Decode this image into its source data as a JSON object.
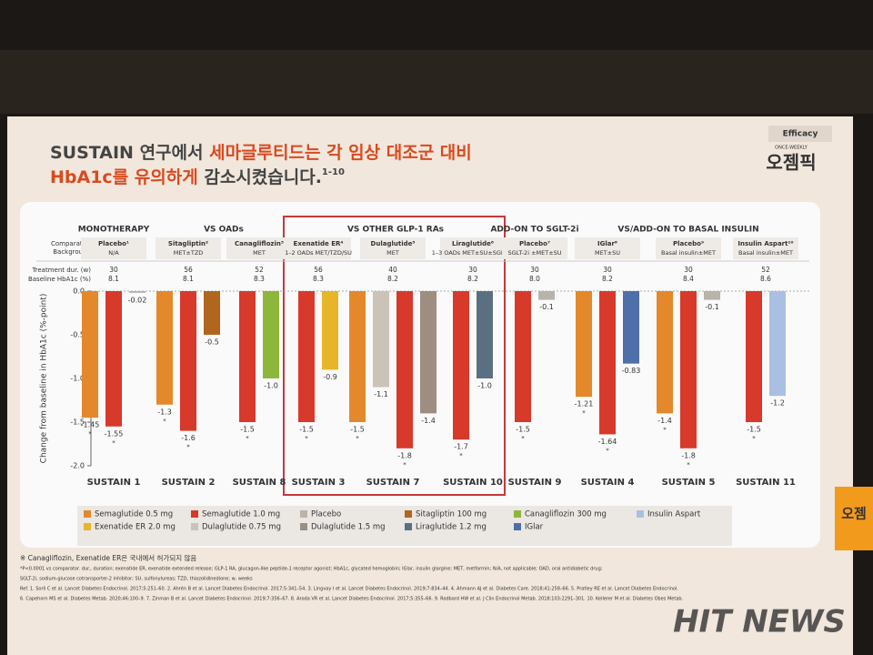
{
  "slide": {
    "tag": "Efficacy",
    "brand": "오젬픽",
    "brand_sub": "ONCE-WEEKLY",
    "title_line1_a": "SUSTAIN 연구에서 ",
    "title_line1_b": "세마글루티드는 각 임상 대조군 대비",
    "title_line2_a": "HbA1c를 유의하게",
    "title_line2_b": " 감소시켰습니다.",
    "title_sup": "1-10",
    "watermark": "HIT NEWS",
    "side_label": "오젬"
  },
  "chart_data": {
    "type": "grouped-bar",
    "y_label": "Change from baseline in HbA1c (%-point)",
    "ylim": [
      -2.0,
      0.0
    ],
    "yticks": [
      {
        "value": 0,
        "label": "0.0"
      },
      -0.5,
      {
        "value": -1,
        "label": "-1.0"
      },
      -1.5,
      {
        "value": -2,
        "label": "-2.0"
      }
    ],
    "groups": [
      "MONOTHERAPY",
      "VS OADs",
      "VS OTHER GLP-1 RAs",
      "ADD-ON TO SGLT-2i",
      "VS/ADD-ON TO BASAL INSULIN"
    ],
    "row_labels": [
      "Comparator:",
      "Background",
      "Treatment dur. (w)",
      "Baseline HbA1c (%)"
    ],
    "categories": [
      "SUSTAIN 1",
      "SUSTAIN 2",
      "SUSTAIN 8",
      "SUSTAIN 3",
      "SUSTAIN 7",
      "SUSTAIN 10",
      "SUSTAIN 9",
      "SUSTAIN 4",
      "SUSTAIN 5",
      "SUSTAIN 11"
    ],
    "comparators": [
      "Placebo¹",
      "Sitagliptin²",
      "Canagliflozin³",
      "Exenatide ER⁴",
      "Dulaglutide⁵",
      "Liraglutide⁶",
      "Placebo⁷",
      "IGlar⁸",
      "Placebo⁹",
      "Insulin Aspart¹⁰"
    ],
    "backgrounds": [
      "N/A",
      "MET±TZD",
      "MET",
      "1–2 OADs MET/TZD/SU",
      "MET",
      "1–3 OADs MET±SU±SGLT-2i",
      "SGLT-2i ±MET±SU",
      "MET±SU",
      "Basal insulin±MET",
      "Basal insulin±MET"
    ],
    "durations": [
      30,
      56,
      52,
      56,
      40,
      30,
      30,
      30,
      30,
      52
    ],
    "baselines": [
      "8.1",
      "8.1",
      "8.3",
      "8.3",
      "8.2",
      "8.2",
      "8.0",
      "8.2",
      "8.4",
      "8.6"
    ],
    "significance_marker": "*",
    "series": [
      {
        "name": "Semaglutide 0.5 mg",
        "color": "#e3892b",
        "values": [
          -1.45,
          -1.3,
          null,
          null,
          -1.5,
          null,
          null,
          -1.21,
          -1.4,
          null
        ]
      },
      {
        "name": "Dulaglutide 0.75 mg",
        "color": "#cbc3b8",
        "values": [
          null,
          null,
          null,
          null,
          -1.1,
          null,
          null,
          null,
          null,
          null
        ]
      },
      {
        "name": "Semaglutide 1.0 mg",
        "color": "#d7392b",
        "values": [
          -1.55,
          -1.6,
          -1.5,
          -1.5,
          -1.8,
          -1.7,
          -1.5,
          -1.64,
          -1.8,
          -1.5
        ]
      },
      {
        "name": "Dulaglutide 1.5 mg",
        "color": "#9d8e80",
        "values": [
          null,
          null,
          null,
          null,
          -1.4,
          null,
          null,
          null,
          null,
          null
        ]
      },
      {
        "name": "Placebo",
        "color": "#b9b3ab",
        "values": [
          -0.02,
          null,
          null,
          null,
          null,
          null,
          -0.1,
          null,
          -0.1,
          null
        ]
      },
      {
        "name": "Sitagliptin 100 mg",
        "color": "#b0661d",
        "values": [
          null,
          -0.5,
          null,
          null,
          null,
          null,
          null,
          null,
          null,
          null
        ]
      },
      {
        "name": "Canagliflozin 300 mg",
        "color": "#8cb73b",
        "values": [
          null,
          null,
          -1,
          null,
          null,
          null,
          null,
          null,
          null,
          null
        ],
        "value_labels": [
          null,
          null,
          "-1.0",
          null,
          null,
          null,
          null,
          null,
          null,
          null
        ]
      },
      {
        "name": "Exenatide ER 2.0 mg",
        "color": "#e7b527",
        "values": [
          null,
          null,
          null,
          -0.9,
          null,
          null,
          null,
          null,
          null,
          null
        ]
      },
      {
        "name": "Liraglutide 1.2 mg",
        "color": "#5b6f82",
        "values": [
          null,
          null,
          null,
          null,
          null,
          -1,
          null,
          null,
          null,
          null
        ],
        "value_labels": [
          null,
          null,
          null,
          null,
          null,
          "-1.0",
          null,
          null,
          null,
          null
        ]
      },
      {
        "name": "IGlar",
        "color": "#4e6fa9",
        "values": [
          null,
          null,
          null,
          null,
          null,
          null,
          null,
          -0.83,
          null,
          null
        ]
      },
      {
        "name": "Insulin Aspart",
        "color": "#a9c0e2",
        "values": [
          null,
          null,
          null,
          null,
          null,
          null,
          null,
          null,
          null,
          -1.2
        ]
      }
    ]
  },
  "footnotes": [
    "※ Canagliflozin, Exenatide ER은 국내에서 허가되지 않음",
    "*P<0.0001 vs comparator. dur., duration; exenatide ER, exenatide extended release; GLP-1 RA, glucagon-like peptide-1 receptor agonist; HbA1c, glycated hemoglobin; IGlar, insulin glargine; MET, metformin; N/A, not applicable; OAD, oral antidiabetic drug;",
    "SGLT-2i, sodium-glucose cotransporter-2 inhibitor; SU, sulfonylureas; TZD, thiazolidinedione; w, weeks",
    "Ref. 1. Sorli C et al. Lancet Diabetes Endocrinol. 2017;5:251–60. 2. Ahrén B et al. Lancet Diabetes Endocrinol. 2017;5:341–54. 3. Lingvay I et al. Lancet Diabetes Endocrinol. 2019;7:834–44. 4. Ahmann AJ et al. Diabetes Care. 2018;41:258–66. 5. Pratley RE et al. Lancet Diabetes Endocrinol.",
    "6. Capehorn MS et al. Diabetes Metab. 2020;46:100–9. 7. Zinman B et al. Lancet Diabetes Endocrinol. 2019;7:356–67. 8. Aroda VR et al. Lancet Diabetes Endocrinol. 2017;5:355–66. 9. Rodbard HW et al. J Clin Endocrinol Metab. 2018;103:2291–301. 10. Kellerer M et al. Diabetes Obes Metab."
  ]
}
